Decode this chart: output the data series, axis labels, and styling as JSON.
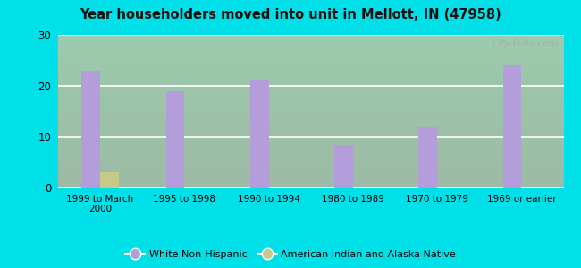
{
  "categories": [
    "1999 to March\n2000",
    "1995 to 1998",
    "1990 to 1994",
    "1980 to 1989",
    "1970 to 1979",
    "1969 or earlier"
  ],
  "white_non_hispanic": [
    23,
    19,
    21,
    8.5,
    12,
    24
  ],
  "american_indian": [
    3,
    0,
    0,
    0,
    0,
    0
  ],
  "bar_color_white": "#b39ddb",
  "bar_color_indian": "#c5c98a",
  "title": "Year householders moved into unit in Mellott, IN (47958)",
  "ylim": [
    0,
    30
  ],
  "yticks": [
    0,
    10,
    20,
    30
  ],
  "outer_bg": "#00e0e8",
  "legend_label_white": "White Non-Hispanic",
  "legend_label_indian": "American Indian and Alaska Native",
  "bar_width": 0.22
}
